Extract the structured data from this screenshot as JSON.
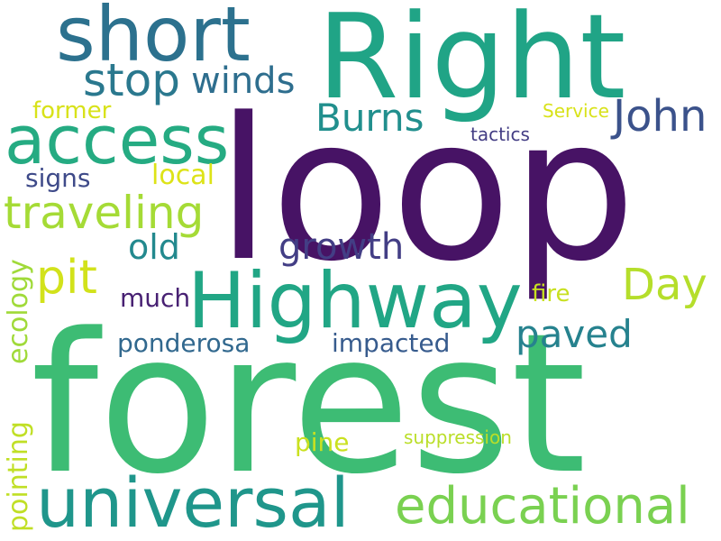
{
  "words": [
    {
      "text": "loop",
      "color": "#471365"
    },
    {
      "text": "forest",
      "color": "#3dbc74"
    },
    {
      "text": "Right",
      "color": "#20a486"
    },
    {
      "text": "Highway",
      "color": "#21a685"
    },
    {
      "text": "short",
      "color": "#2c718e"
    },
    {
      "text": "access",
      "color": "#25ab82"
    },
    {
      "text": "universal",
      "color": "#1f968b"
    },
    {
      "text": "educational",
      "color": "#7ad151"
    },
    {
      "text": "traveling",
      "color": "#a5db36"
    },
    {
      "text": "stop",
      "color": "#2a788e"
    },
    {
      "text": "winds",
      "color": "#2e6e8e"
    },
    {
      "text": "Burns",
      "color": "#218f8d"
    },
    {
      "text": "John",
      "color": "#3b528b"
    },
    {
      "text": "pit",
      "color": "#d2e21b"
    },
    {
      "text": "Day",
      "color": "#b5de2b"
    },
    {
      "text": "paved",
      "color": "#26828e"
    },
    {
      "text": "old",
      "color": "#23898e"
    },
    {
      "text": "growth",
      "color": "#433e85"
    },
    {
      "text": "former",
      "color": "#d8e219"
    },
    {
      "text": "signs",
      "color": "#3e4a89"
    },
    {
      "text": "local",
      "color": "#dde318"
    },
    {
      "text": "much",
      "color": "#482173"
    },
    {
      "text": "ponderosa",
      "color": "#31688e"
    },
    {
      "text": "impacted",
      "color": "#375b8d"
    },
    {
      "text": "fire",
      "color": "#c8e020"
    },
    {
      "text": "pine",
      "color": "#cae11f"
    },
    {
      "text": "suppression",
      "color": "#bade28"
    },
    {
      "text": "ecology",
      "color": "#a0da39"
    },
    {
      "text": "pointing",
      "color": "#c0df25"
    },
    {
      "text": "Service",
      "color": "#d8e219"
    },
    {
      "text": "tactics",
      "color": "#433d84"
    }
  ]
}
